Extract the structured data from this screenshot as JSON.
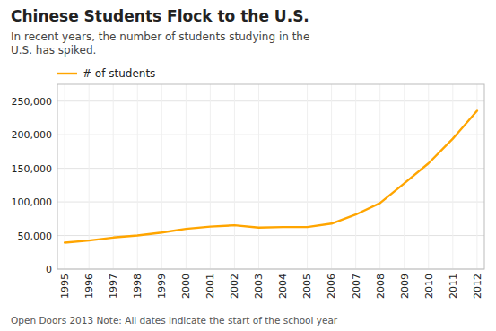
{
  "chart_data": {
    "type": "line",
    "title": "Chinese Students Flock to the U.S.",
    "subtitle": "In recent years, the number of students studying in the\nU.S. has spiked.",
    "footer": "Open Doors 2013  Note: All dates indicate the start of the school year",
    "x": [
      1995,
      1996,
      1997,
      1998,
      1999,
      2000,
      2001,
      2002,
      2003,
      2004,
      2005,
      2006,
      2007,
      2008,
      2009,
      2010,
      2011,
      2012
    ],
    "series": [
      {
        "name": "# of students",
        "color": "#FFA500",
        "values": [
          39403,
          42503,
          46958,
          49976,
          54466,
          59939,
          63211,
          65206,
          61765,
          62523,
          62582,
          67723,
          81127,
          98235,
          127628,
          157558,
          194029,
          235597
        ]
      }
    ],
    "xlim": [
      1994.7,
      2012.3
    ],
    "xticks": [
      1995,
      1996,
      1997,
      1998,
      1999,
      2000,
      2001,
      2002,
      2003,
      2004,
      2005,
      2006,
      2007,
      2008,
      2009,
      2010,
      2011,
      2012
    ],
    "ylim": [
      0,
      275000
    ],
    "yticks": [
      0,
      {
        "value": 50000,
        "label": "50,000"
      },
      {
        "value": 100000,
        "label": "100,000"
      },
      {
        "value": 150000,
        "label": "150,000"
      },
      {
        "value": 200000,
        "label": "200,000"
      },
      {
        "value": 250000,
        "label": "250,000"
      }
    ],
    "grid": true,
    "legend": "top-left"
  }
}
